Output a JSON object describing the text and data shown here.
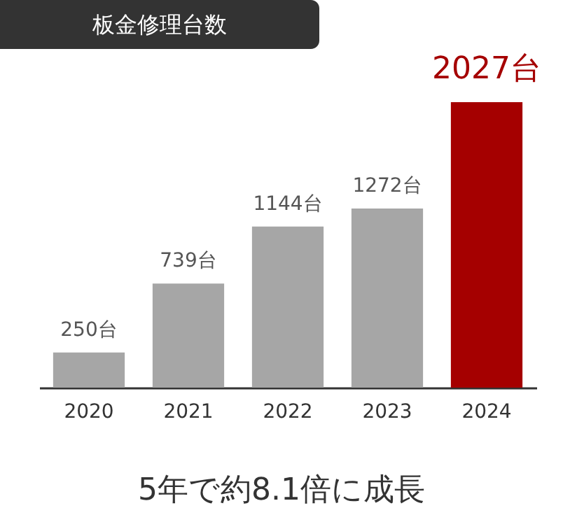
{
  "chart_data": {
    "type": "bar",
    "title": "板金修理台数",
    "categories": [
      "2020",
      "2021",
      "2022",
      "2023",
      "2024"
    ],
    "values": [
      250,
      739,
      1144,
      1272,
      2027
    ],
    "colors": [
      "#a6a6a6",
      "#a6a6a6",
      "#a6a6a6",
      "#a6a6a6",
      "#a50000"
    ],
    "value_labels": [
      "250台",
      "739台",
      "1144台",
      "1272台",
      "2027台"
    ],
    "annotations": [
      "5年で約8.1倍に成長"
    ]
  }
}
